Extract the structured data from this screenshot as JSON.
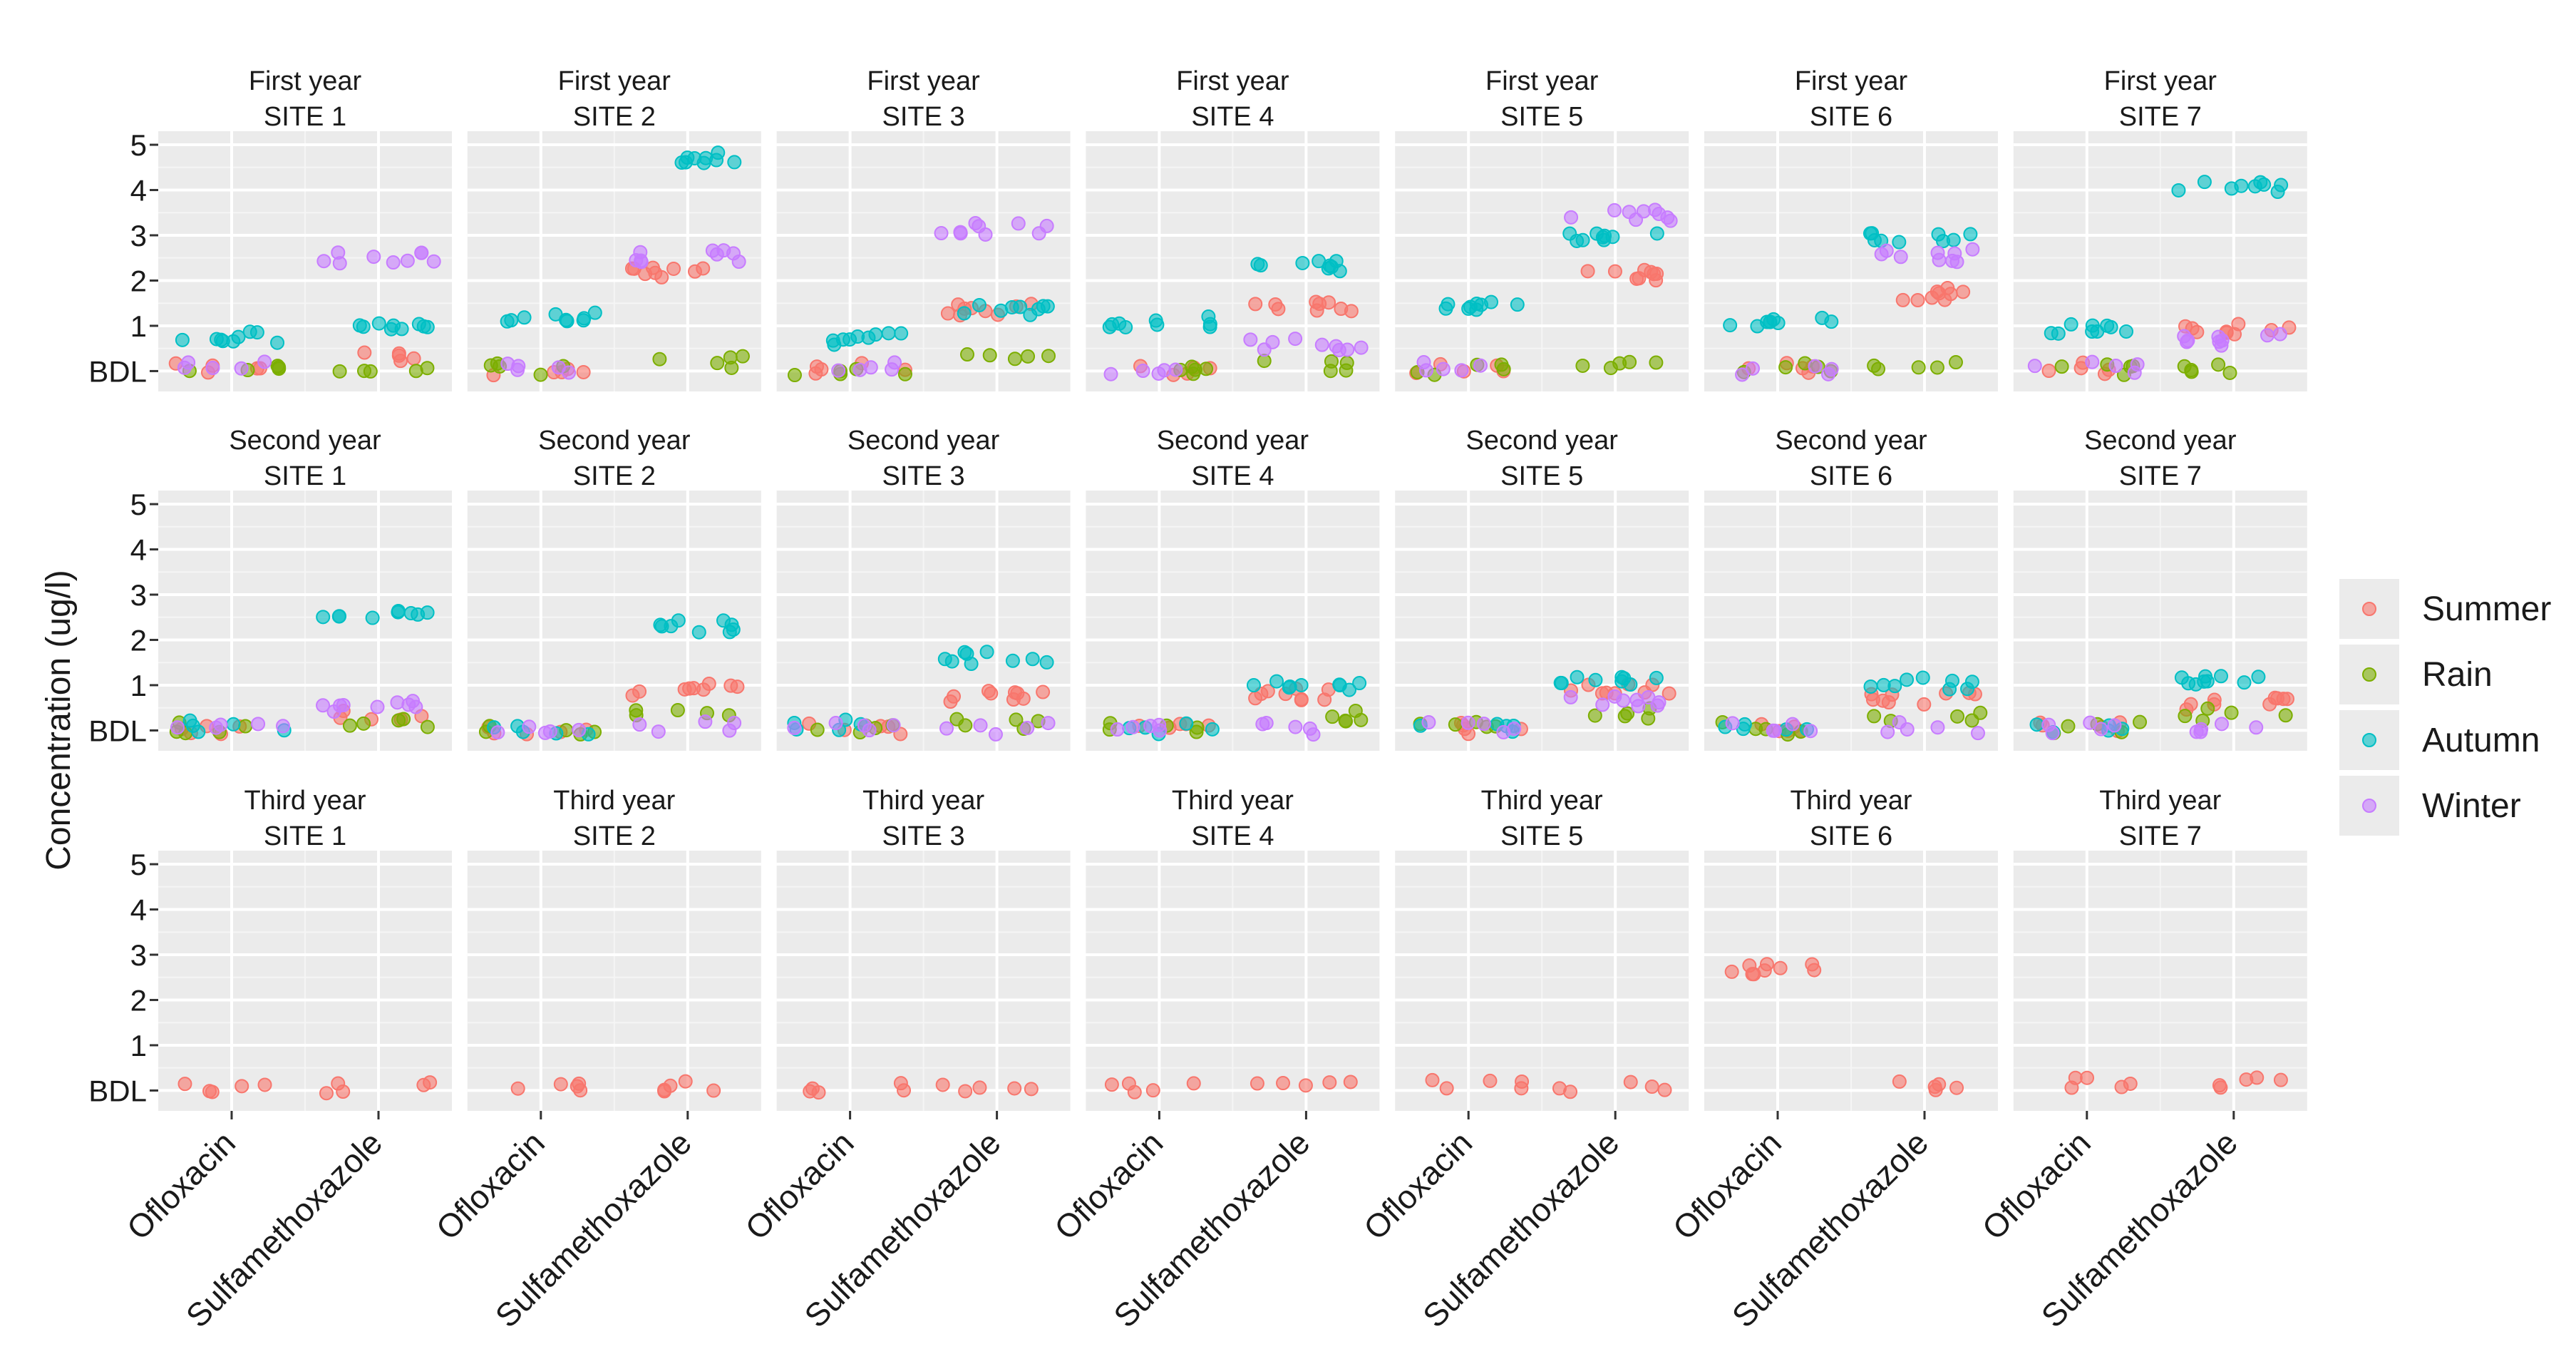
{
  "chart_data": {
    "type": "scatter",
    "facet_layout": "grid",
    "row_titles": [
      "First year",
      "Second year",
      "Third year"
    ],
    "col_titles": [
      "SITE 1",
      "SITE 2",
      "SITE 3",
      "SITE 4",
      "SITE 5",
      "SITE 6",
      "SITE 7"
    ],
    "categories": [
      "Ofloxacin",
      "Sulfamethoxazole"
    ],
    "ylabel": "Concentration (ug/l)",
    "y_ticks": [
      0,
      1,
      2,
      3,
      4,
      5
    ],
    "y_tick_labels": [
      "BDL",
      "1",
      "2",
      "3",
      "4",
      "5"
    ],
    "ylim": [
      -0.45,
      5.3
    ],
    "legend_position": "right",
    "seasons": [
      {
        "name": "Summer",
        "color": "#F8766D"
      },
      {
        "name": "Rain",
        "color": "#7CAE00"
      },
      {
        "name": "Autumn",
        "color": "#00BFC4"
      },
      {
        "name": "Winter",
        "color": "#C77CFF"
      }
    ],
    "panels": [
      [
        {
          "Summer": [
            0.05,
            0.35
          ],
          "Rain": [
            0.0,
            0.05
          ],
          "Autumn": [
            0.75,
            1.0
          ],
          "Winter": [
            0.1,
            2.5
          ]
        },
        {
          "Summer": [
            0.05,
            2.15
          ],
          "Rain": [
            0.05,
            0.2
          ],
          "Autumn": [
            1.15,
            4.7
          ],
          "Winter": [
            0.1,
            2.55
          ]
        },
        {
          "Summer": [
            0.05,
            1.35
          ],
          "Rain": [
            0.05,
            0.25
          ],
          "Autumn": [
            0.7,
            1.35
          ],
          "Winter": [
            0.1,
            3.15
          ]
        },
        {
          "Summer": [
            0.05,
            1.45
          ],
          "Rain": [
            0.05,
            0.1
          ],
          "Autumn": [
            1.1,
            2.3
          ],
          "Winter": [
            0.05,
            0.6
          ]
        },
        {
          "Summer": [
            0.05,
            2.1
          ],
          "Rain": [
            0.05,
            0.1
          ],
          "Autumn": [
            1.45,
            3.0
          ],
          "Winter": [
            0.1,
            3.45
          ]
        },
        {
          "Summer": [
            0.05,
            1.7
          ],
          "Rain": [
            0.05,
            0.1
          ],
          "Autumn": [
            1.05,
            2.95
          ],
          "Winter": [
            0.05,
            2.55
          ]
        },
        {
          "Summer": [
            0.05,
            0.95
          ],
          "Rain": [
            0.05,
            0.1
          ],
          "Autumn": [
            0.9,
            4.05
          ],
          "Winter": [
            0.1,
            0.7
          ]
        }
      ],
      [
        {
          "Summer": [
            0.05,
            0.3
          ],
          "Rain": [
            0.05,
            0.2
          ],
          "Autumn": [
            0.1,
            2.55
          ],
          "Winter": [
            0.05,
            0.55
          ]
        },
        {
          "Summer": [
            0.05,
            0.9
          ],
          "Rain": [
            0.05,
            0.35
          ],
          "Autumn": [
            0.05,
            2.3
          ],
          "Winter": [
            0.05,
            0.1
          ]
        },
        {
          "Summer": [
            0.05,
            0.75
          ],
          "Rain": [
            0.05,
            0.15
          ],
          "Autumn": [
            0.1,
            1.6
          ],
          "Winter": [
            0.05,
            0.05
          ]
        },
        {
          "Summer": [
            0.05,
            0.8
          ],
          "Rain": [
            0.05,
            0.3
          ],
          "Autumn": [
            0.05,
            1.0
          ],
          "Winter": [
            0.05,
            0.05
          ]
        },
        {
          "Summer": [
            0.05,
            0.9
          ],
          "Rain": [
            0.05,
            0.35
          ],
          "Autumn": [
            0.05,
            1.15
          ],
          "Winter": [
            0.05,
            0.65
          ]
        },
        {
          "Summer": [
            0.05,
            0.7
          ],
          "Rain": [
            0.05,
            0.25
          ],
          "Autumn": [
            0.05,
            1.05
          ],
          "Winter": [
            0.05,
            0.05
          ]
        },
        {
          "Summer": [
            0.05,
            0.6
          ],
          "Rain": [
            0.05,
            0.35
          ],
          "Autumn": [
            0.05,
            1.15
          ],
          "Winter": [
            0.05,
            0.05
          ]
        }
      ],
      [
        {
          "Summer": [
            0.05,
            0.05
          ]
        },
        {
          "Summer": [
            0.1,
            0.1
          ]
        },
        {
          "Summer": [
            0.05,
            0.05
          ]
        },
        {
          "Summer": [
            0.1,
            0.1
          ]
        },
        {
          "Summer": [
            0.1,
            0.05
          ]
        },
        {
          "Summer": [
            2.7,
            0.1
          ]
        },
        {
          "Summer": [
            0.15,
            0.15
          ]
        }
      ]
    ]
  }
}
